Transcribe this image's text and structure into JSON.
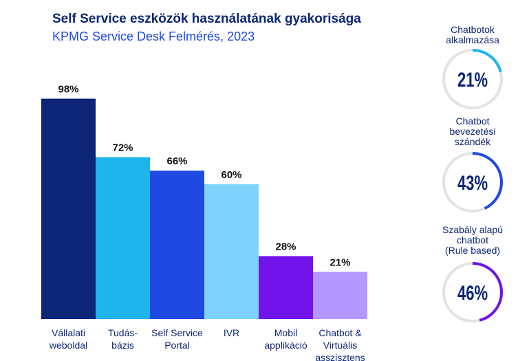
{
  "chart_data": {
    "type": "bar",
    "title": "Self Service eszközök használatának gyakorisága",
    "subtitle": "KPMG Service Desk Felmérés, 2023",
    "categories": [
      [
        "Vállalati",
        "weboldal"
      ],
      [
        "Tudás-",
        "bázis"
      ],
      [
        "Self Service",
        "Portal"
      ],
      [
        "IVR"
      ],
      [
        "Mobil",
        "applikáció"
      ],
      [
        "Chatbot &",
        "Virtuális",
        "asszisztens"
      ]
    ],
    "values": [
      98,
      72,
      66,
      60,
      28,
      21
    ],
    "value_labels": [
      "98%",
      "72%",
      "66%",
      "60%",
      "28%",
      "21%"
    ],
    "bar_colors": [
      "#0c2577",
      "#1fb5ec",
      "#1e49e2",
      "#7dd3fc",
      "#7213ea",
      "#b497ff"
    ],
    "ylim": [
      0,
      100
    ],
    "xlabel": "",
    "ylabel": ""
  },
  "gauges": [
    {
      "label_lines": [
        "Chatbotok",
        "alkalmazása"
      ],
      "value": 21,
      "display": "21%",
      "color": "#1fb5ec"
    },
    {
      "label_lines": [
        "Chatbot",
        "bevezetési",
        "szándék"
      ],
      "value": 43,
      "display": "43%",
      "color": "#1e49e2"
    },
    {
      "label_lines": [
        "Szabály alapú",
        "chatbot",
        "(Rule based)"
      ],
      "value": 46,
      "display": "46%",
      "color": "#7213ea"
    }
  ],
  "colors": {
    "title": "#0c2577",
    "subtitle": "#1e49e2",
    "gauge_track": "#e3e3e3",
    "text": "#0c2577"
  }
}
